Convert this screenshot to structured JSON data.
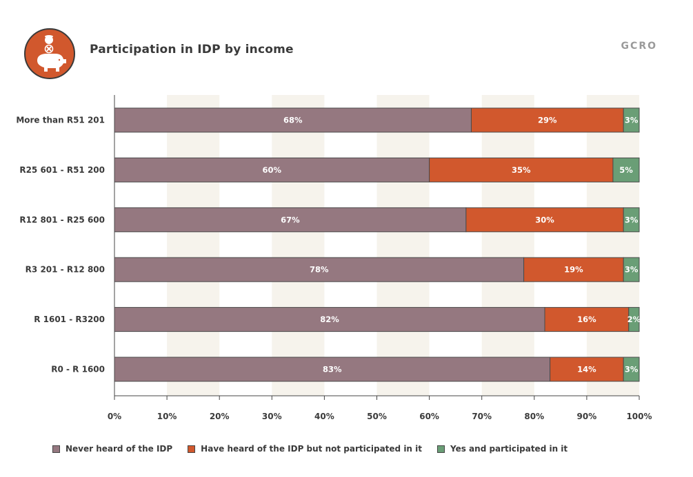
{
  "title": "Participation in IDP by income",
  "brand": "GCRO",
  "icon": "piggy-bank-coin-icon",
  "colors": {
    "never": "#957880",
    "heard": "#d1582d",
    "participated": "#6a9e76",
    "icon_bg": "#d1582d",
    "grid_band": "#f6f3ec"
  },
  "legend": [
    {
      "label": "Never heard of the IDP",
      "color": "#957880"
    },
    {
      "label": "Have heard of the IDP but not participated in it",
      "color": "#d1582d"
    },
    {
      "label": "Yes and participated in it",
      "color": "#6a9e76"
    }
  ],
  "chart_data": {
    "type": "bar",
    "orientation": "horizontal",
    "stacked": true,
    "categories": [
      "More than R51 201",
      "R25 601 - R51 200",
      "R12 801 - R25 600",
      "R3 201 - R12 800",
      "R 1601 - R3200",
      "R0 - R 1600"
    ],
    "series": [
      {
        "name": "Never heard of the IDP",
        "values": [
          68,
          60,
          67,
          78,
          82,
          83
        ],
        "labels": [
          "68%",
          "60%",
          "67%",
          "78%",
          "82%",
          "83%"
        ]
      },
      {
        "name": "Have heard of the IDP but not participated in it",
        "values": [
          29,
          35,
          30,
          19,
          16,
          14
        ],
        "labels": [
          "29%",
          "35%",
          "30%",
          "19%",
          "16%",
          "14%"
        ]
      },
      {
        "name": "Yes and participated in it",
        "values": [
          3,
          5,
          3,
          3,
          2,
          3
        ],
        "labels": [
          "3%",
          "5%",
          "3%",
          "3%",
          "2%",
          "3%"
        ]
      }
    ],
    "xlim": [
      0,
      100
    ],
    "xticks": [
      "0%",
      "10%",
      "20%",
      "30%",
      "40%",
      "50%",
      "60%",
      "70%",
      "80%",
      "90%",
      "100%"
    ],
    "grid": "alternating vertical bands",
    "legend_position": "bottom"
  }
}
